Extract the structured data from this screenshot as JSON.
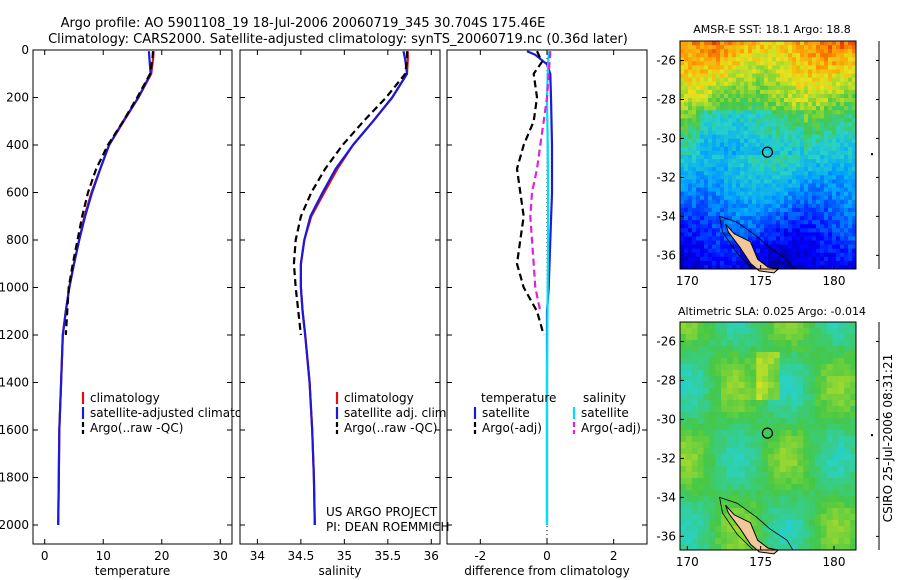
{
  "header": {
    "line1": "Argo profile: AO 5901108_19 18-Jul-2006 20060719_345 30.704S 175.46E",
    "line2": "Climatology: CARS2000. Satellite-adjusted climatology: synTS_20060719.nc (0.36d later)"
  },
  "footer_text": {
    "project": "US ARGO PROJECT",
    "pi": "PI: DEAN ROEMMICH",
    "stamp": "CSIRO  25-Jul-2006 08:31:21"
  },
  "colors": {
    "climatology": "#e01010",
    "satellite": "#1a1ad8",
    "argo": "#000000",
    "sat_salinity": "#00e0f0",
    "argo_salinity": "#e020e0"
  },
  "chart_data": [
    {
      "type": "line",
      "id": "temperature",
      "xlabel": "temperature",
      "ylabel": "",
      "xlim": [
        -2,
        32
      ],
      "ylim": [
        2080,
        0
      ],
      "xticks": [
        0,
        10,
        20,
        30
      ],
      "yticks": [
        0,
        200,
        400,
        600,
        800,
        1000,
        1200,
        1400,
        1600,
        1800,
        2000
      ],
      "y_reversed": true,
      "legend": [
        "climatology",
        "satellite-adjusted climatology",
        "Argo(..raw -QC)"
      ],
      "series": [
        {
          "name": "climatology",
          "color": "#e01010",
          "dash": "",
          "x": [
            18.6,
            18.5,
            18.2,
            16.0,
            13.5,
            11.0,
            9.5,
            8.0,
            6.8,
            5.9,
            5.0,
            4.2,
            3.6,
            3.1,
            2.8,
            2.5,
            2.4,
            2.3
          ],
          "y": [
            5,
            40,
            100,
            200,
            300,
            400,
            500,
            600,
            700,
            800,
            900,
            1000,
            1100,
            1200,
            1400,
            1600,
            1800,
            2000
          ]
        },
        {
          "name": "satellite-adjusted climatology",
          "color": "#1a1ad8",
          "dash": "",
          "x": [
            17.8,
            17.9,
            18.1,
            16.0,
            13.4,
            11.0,
            9.5,
            8.1,
            6.9,
            5.9,
            5.0,
            4.2,
            3.6,
            3.1,
            2.8,
            2.5,
            2.4,
            2.3
          ],
          "y": [
            5,
            40,
            100,
            200,
            300,
            400,
            500,
            600,
            700,
            800,
            900,
            1000,
            1100,
            1200,
            1400,
            1600,
            1800,
            2000
          ]
        },
        {
          "name": "Argo(..raw -QC)",
          "color": "#000000",
          "dash": "7,4",
          "x": [
            18.5,
            18.4,
            18.0,
            15.8,
            13.4,
            10.8,
            8.8,
            7.4,
            6.4,
            5.6,
            4.8,
            4.1,
            3.6
          ],
          "y": [
            5,
            40,
            100,
            200,
            300,
            400,
            500,
            600,
            700,
            800,
            900,
            1000,
            1200
          ]
        }
      ]
    },
    {
      "type": "line",
      "id": "salinity",
      "xlabel": "salinity",
      "ylabel": "",
      "xlim": [
        33.8,
        36.1
      ],
      "ylim": [
        2080,
        0
      ],
      "xticks": [
        34,
        34.5,
        35,
        35.5,
        36
      ],
      "yticks": [
        0,
        200,
        400,
        600,
        800,
        1000,
        1200,
        1400,
        1600,
        1800,
        2000
      ],
      "y_reversed": true,
      "legend": [
        "climatology",
        "satellite adj. clim.",
        "Argo(..raw -QC)"
      ],
      "series": [
        {
          "name": "climatology",
          "color": "#e01010",
          "dash": "",
          "x": [
            35.73,
            35.73,
            35.72,
            35.55,
            35.33,
            35.1,
            34.92,
            34.77,
            34.62,
            34.54,
            34.5,
            34.5,
            34.52,
            34.55,
            34.6,
            34.63,
            34.65,
            34.66
          ],
          "y": [
            5,
            40,
            100,
            200,
            300,
            400,
            500,
            600,
            700,
            800,
            900,
            1000,
            1100,
            1200,
            1400,
            1600,
            1800,
            2000
          ]
        },
        {
          "name": "satellite adj. clim.",
          "color": "#1a1ad8",
          "dash": "",
          "x": [
            35.68,
            35.7,
            35.72,
            35.55,
            35.33,
            35.1,
            34.9,
            34.75,
            34.61,
            34.54,
            34.5,
            34.5,
            34.52,
            34.55,
            34.6,
            34.63,
            34.65,
            34.66
          ],
          "y": [
            5,
            40,
            100,
            200,
            300,
            400,
            500,
            600,
            700,
            800,
            900,
            1000,
            1100,
            1200,
            1400,
            1600,
            1800,
            2000
          ]
        },
        {
          "name": "Argo(..raw -QC)",
          "color": "#000000",
          "dash": "7,4",
          "x": [
            35.72,
            35.72,
            35.7,
            35.48,
            35.22,
            34.98,
            34.78,
            34.62,
            34.5,
            34.44,
            34.42,
            34.44,
            34.5
          ],
          "y": [
            5,
            40,
            100,
            200,
            300,
            400,
            500,
            600,
            700,
            800,
            900,
            1000,
            1200
          ]
        }
      ]
    },
    {
      "type": "line",
      "id": "difference",
      "xlabel": "difference from climatology",
      "ylabel": "",
      "xlim": [
        -3,
        3
      ],
      "ylim": [
        2080,
        0
      ],
      "xticks": [
        -2,
        0,
        2
      ],
      "yticks": [
        0,
        200,
        400,
        600,
        800,
        1000,
        1200,
        1400,
        1600,
        1800,
        2000
      ],
      "y_reversed": true,
      "legend_titles": [
        "temperature",
        "salinity"
      ],
      "legend": [
        "satellite",
        "Argo(-adj)",
        "satellite",
        "Argo(-adj)"
      ],
      "series": [
        {
          "name": "satellite",
          "group": "temperature",
          "color": "#1a1ad8",
          "dash": "",
          "x": [
            -0.6,
            -0.35,
            0.0,
            0.1,
            0.12,
            0.15,
            0.15,
            0.1,
            0.05,
            0.0,
            0.0,
            0.0,
            0.0
          ],
          "y": [
            5,
            20,
            60,
            100,
            200,
            400,
            600,
            800,
            1000,
            1100,
            1200,
            1500,
            2000
          ]
        },
        {
          "name": "Argo(-adj)",
          "group": "temperature",
          "color": "#000000",
          "dash": "7,4",
          "x": [
            -0.3,
            -0.15,
            -0.4,
            -0.3,
            -0.4,
            -0.7,
            -0.9,
            -0.8,
            -0.7,
            -0.8,
            -0.9,
            -0.7,
            -0.3,
            -0.1
          ],
          "y": [
            5,
            50,
            100,
            200,
            300,
            400,
            500,
            600,
            700,
            800,
            900,
            1000,
            1100,
            1200
          ]
        },
        {
          "name": "satellite",
          "group": "salinity",
          "color": "#00e0f0",
          "dash": "",
          "x": [
            0.05,
            0.02,
            0.0,
            0.02,
            0.03,
            0.03,
            0.02,
            0.01,
            0.0,
            0.0,
            0.0
          ],
          "y": [
            5,
            100,
            200,
            400,
            600,
            800,
            1000,
            1200,
            1400,
            1800,
            2000
          ]
        },
        {
          "name": "Argo(-adj)",
          "group": "salinity",
          "color": "#e020e0",
          "dash": "7,4",
          "x": [
            0.1,
            0.05,
            0.0,
            -0.1,
            -0.2,
            -0.3,
            -0.45,
            -0.5,
            -0.45,
            -0.4,
            -0.35,
            -0.2
          ],
          "y": [
            5,
            100,
            200,
            300,
            400,
            500,
            600,
            700,
            800,
            900,
            1000,
            1100
          ]
        }
      ]
    },
    {
      "type": "heatmap",
      "id": "sst-map",
      "title": "AMSR-E SST: 18.1 Argo: 18.8",
      "xlim": [
        169.5,
        181.5
      ],
      "ylim": [
        -36.7,
        -25.0
      ],
      "xticks": [
        170,
        175,
        180
      ],
      "yticks": [
        -26,
        -28,
        -30,
        -32,
        -34,
        -36
      ],
      "marker": {
        "lon": 175.46,
        "lat": -30.704
      },
      "field": "sst"
    },
    {
      "type": "heatmap",
      "id": "sla-map",
      "title": "Altimetric SLA: 0.025 Argo: -0.014",
      "xlim": [
        169.5,
        181.5
      ],
      "ylim": [
        -36.7,
        -25.0
      ],
      "xticks": [
        170,
        175,
        180
      ],
      "yticks": [
        -26,
        -28,
        -30,
        -32,
        -34,
        -36
      ],
      "marker": {
        "lon": 175.46,
        "lat": -30.704
      },
      "field": "sla"
    }
  ]
}
